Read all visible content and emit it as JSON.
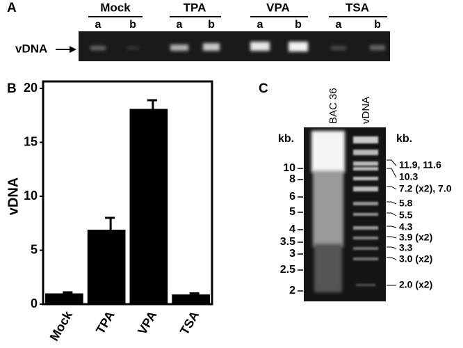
{
  "panel_a": {
    "label": "A",
    "groups": [
      {
        "name": "Mock",
        "lanes": [
          "a",
          "b"
        ]
      },
      {
        "name": "TPA",
        "lanes": [
          "a",
          "b"
        ]
      },
      {
        "name": "VPA",
        "lanes": [
          "a",
          "b"
        ]
      },
      {
        "name": "TSA",
        "lanes": [
          "a",
          "b"
        ]
      }
    ],
    "band_label": "vDNA"
  },
  "chart_data": {
    "type": "bar",
    "panel_label": "B",
    "ylabel": "vDNA",
    "categories": [
      "Mock",
      "TPA",
      "VPA",
      "TSA"
    ],
    "values": [
      1.0,
      6.9,
      18.1,
      0.9
    ],
    "errors": [
      0.1,
      1.1,
      0.8,
      0.1
    ],
    "color": "#000000",
    "ylim": [
      0,
      20
    ],
    "yticks": [
      0,
      5,
      10,
      15,
      20
    ]
  },
  "panel_c": {
    "label": "C",
    "lanes": [
      "BAC 36",
      "vDNA"
    ],
    "unit_left": "kb.",
    "unit_right": "kb.",
    "ladder_left": [
      10,
      8,
      6,
      5,
      4,
      3.5,
      3,
      2.5,
      2
    ],
    "bands_right": [
      "11.9, 11.6",
      "10.3",
      "7.2 (x2), 7.0",
      "5.8",
      "5.5",
      "4.3",
      "3.9 (x2)",
      "3.3",
      "3.0 (x2)",
      "2.0 (x2)"
    ]
  }
}
